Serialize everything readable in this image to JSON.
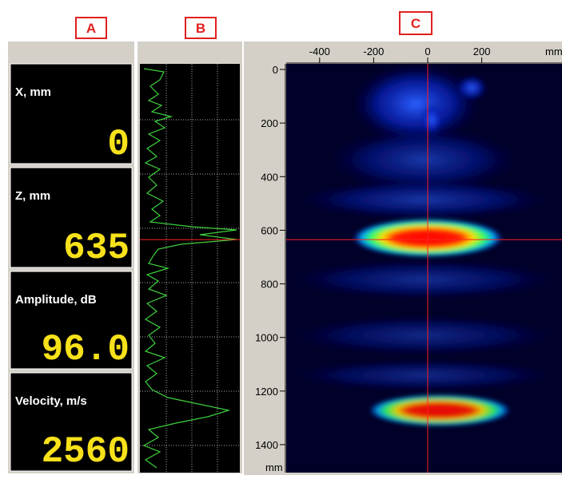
{
  "labels": {
    "a": "A",
    "b": "B",
    "c": "C"
  },
  "readouts": [
    {
      "label": "X, mm",
      "value": "0"
    },
    {
      "label": "Z, mm",
      "value": "635"
    },
    {
      "label": "Amplitude, dB",
      "value": "96.0"
    },
    {
      "label": "Velocity, m/s",
      "value": "2560"
    }
  ],
  "image_axes": {
    "x_ticks": [
      -400,
      -200,
      0,
      200
    ],
    "x_unit": "mm",
    "y_ticks": [
      0,
      200,
      400,
      600,
      800,
      1000,
      1200,
      1400
    ],
    "y_unit": "mm"
  }
}
